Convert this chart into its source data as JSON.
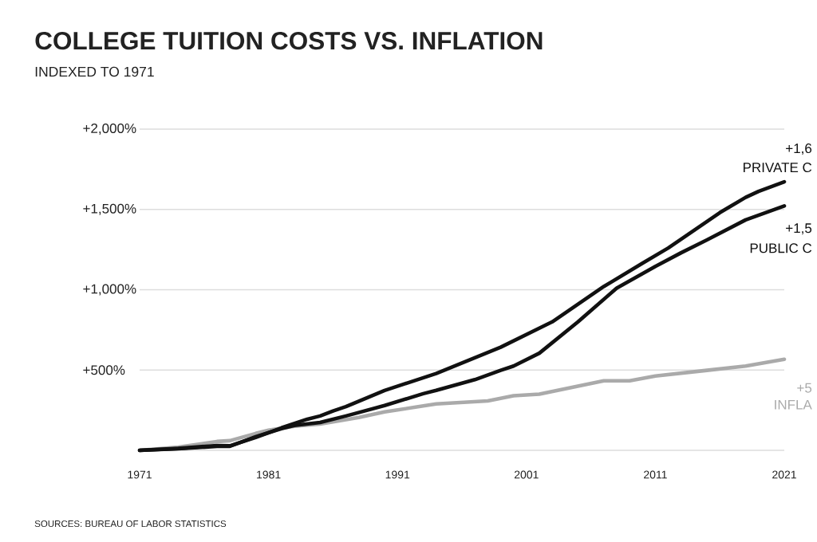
{
  "chart_data": {
    "type": "line",
    "title": "COLLEGE TUITION COSTS VS. INFLATION",
    "subtitle": "INDEXED TO 1971",
    "xlim": [
      1971,
      2021
    ],
    "xticks": [
      1971,
      1981,
      1991,
      2001,
      2011,
      2021
    ],
    "ylim": [
      0,
      2000
    ],
    "yticks": [
      {
        "value": 0,
        "label": null
      },
      {
        "value": 500,
        "label": "+500%"
      },
      {
        "value": 1000,
        "label": "+1,000%"
      },
      {
        "value": 1500,
        "label": "+1,500%"
      },
      {
        "value": 2000,
        "label": "+2,000%"
      }
    ],
    "grid": "y",
    "marker": "none",
    "line_style": "solid",
    "series": [
      {
        "name": "PRIVATE C",
        "color": "#111111",
        "x": [
          1971,
          1974,
          1977,
          1978,
          1980,
          1982,
          1984,
          1985,
          1986,
          1987,
          1990,
          1994,
          1999,
          2003,
          2005,
          2007,
          2010,
          2012,
          2014,
          2016,
          2018,
          2019,
          2021
        ],
        "values": [
          0,
          12,
          30,
          28,
          80,
          140,
          194,
          214,
          245,
          272,
          373,
          478,
          642,
          800,
          910,
          1020,
          1165,
          1260,
          1370,
          1480,
          1575,
          1612,
          1672
        ]
      },
      {
        "name": "PUBLIC C",
        "color": "#111111",
        "x": [
          1971,
          1974,
          1977,
          1978,
          1980,
          1982,
          1983,
          1985,
          1987,
          1990,
          1993,
          1994,
          1997,
          1999,
          2000,
          2002,
          2005,
          2008,
          2011,
          2013,
          2015,
          2018,
          2021
        ],
        "values": [
          0,
          10,
          25,
          25,
          85,
          135,
          155,
          174,
          214,
          279,
          353,
          373,
          440,
          498,
          525,
          605,
          800,
          1010,
          1145,
          1230,
          1310,
          1435,
          1522
        ]
      },
      {
        "name": "INFLA",
        "color": "#aaaaaa",
        "x": [
          1971,
          1974,
          1977,
          1978,
          1980,
          1981,
          1983,
          1985,
          1988,
          1990,
          1994,
          1998,
          2000,
          2002,
          2007,
          2009,
          2011,
          2015,
          2018,
          2021
        ],
        "values": [
          0,
          20,
          55,
          60,
          105,
          125,
          150,
          164,
          205,
          239,
          289,
          308,
          340,
          350,
          433,
          433,
          463,
          498,
          525,
          567
        ]
      }
    ],
    "annotations": [
      "+1,6",
      "+1,5",
      "+5",
      "SOURCES: BUREAU OF LABOR STATISTICS"
    ]
  }
}
